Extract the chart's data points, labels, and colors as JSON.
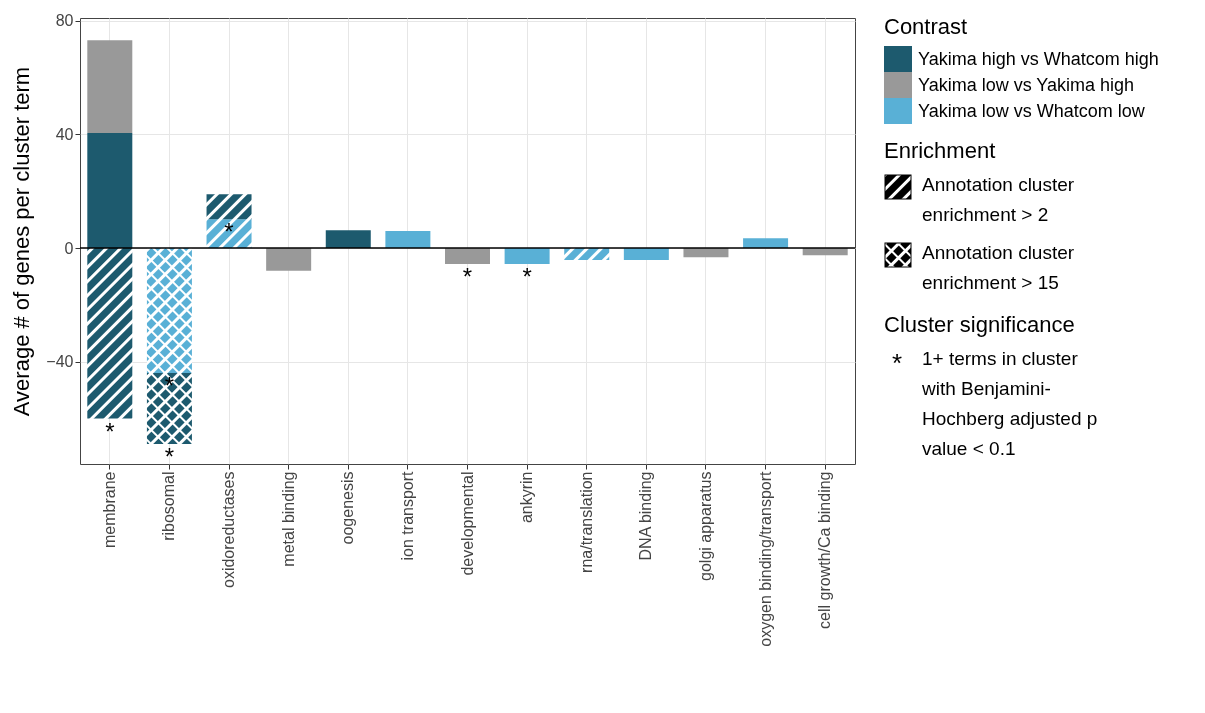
{
  "chart_data": {
    "type": "bar",
    "stacked": true,
    "ylabel": "Average # of genes per cluster term",
    "legend_title": "Contrast",
    "legend": "right",
    "categories": [
      "membrane",
      "ribosomal",
      "oxidoreductases",
      "metal binding",
      "oogenesis",
      "ion transport",
      "developmental",
      "ankyrin",
      "rna/translation",
      "DNA binding",
      "golgi apparatus",
      "oxygen binding/transport",
      "cell growth/Ca binding"
    ],
    "series": [
      {
        "name": "Yakima high vs Whatcom high",
        "color": "#1d5a6e",
        "values": [
          40.5,
          null,
          null,
          null,
          6.3,
          null,
          null,
          null,
          null,
          null,
          null,
          null,
          null
        ]
      },
      {
        "name": "Yakima low vs Yakima high",
        "color": "#999999",
        "values": [
          32.7,
          null,
          null,
          -8,
          null,
          null,
          -5.6,
          null,
          null,
          null,
          -3.2,
          null,
          -2.5
        ]
      },
      {
        "name": "Yakima low vs Whatcom low",
        "color": "#59b0d6",
        "values": [
          null,
          null,
          null,
          null,
          null,
          6,
          null,
          -5.6,
          null,
          -4.2,
          null,
          3.5,
          null
        ]
      },
      {
        "colors": [
          "#1d5a6e",
          null,
          "#59b0d6",
          null,
          null,
          null,
          null,
          null,
          "#59b0d6",
          null,
          null,
          null,
          null
        ],
        "values": [
          -60,
          null,
          10.2,
          null,
          null,
          null,
          null,
          null,
          -4.2,
          null,
          null,
          null,
          null
        ]
      },
      {
        "colors": [
          null,
          null,
          "#1d5a6e",
          null,
          null,
          null,
          null,
          null,
          null,
          null,
          null,
          null,
          null
        ],
        "values": [
          null,
          null,
          8.8,
          null,
          null,
          null,
          null,
          null,
          null,
          null,
          null,
          null,
          null
        ]
      },
      {
        "colors": [
          null,
          "#59b0d6",
          null,
          null,
          null,
          null,
          null,
          null,
          null,
          null,
          null,
          null,
          null
        ],
        "values": [
          null,
          -44,
          null,
          null,
          null,
          null,
          null,
          null,
          null,
          null,
          null,
          null,
          null
        ]
      },
      {
        "colors": [
          null,
          "#1d5a6e",
          null,
          null,
          null,
          null,
          null,
          null,
          null,
          null,
          null,
          null,
          null
        ],
        "values": [
          null,
          -25,
          null,
          null,
          null,
          null,
          null,
          null,
          null,
          null,
          null,
          null,
          null
        ]
      }
    ],
    "ylim": [
      -76,
      81
    ],
    "yticks": [
      -40,
      0,
      40,
      80
    ],
    "grid": true,
    "ref_lines": [
      {
        "axis": "y",
        "value": 0,
        "color": "#000000"
      }
    ],
    "annotations": [
      "Enrichment",
      "Annotation cluster enrichment > 2",
      "Annotation cluster enrichment > 15",
      "Cluster significance",
      "1+ terms in cluster with Benjamini-Hochberg adjusted p value < 0.1",
      {
        "text": "*",
        "x": "membrane",
        "y": -60
      },
      {
        "text": "*",
        "x": "ribosomal",
        "y": -44
      },
      {
        "text": "*",
        "x": "ribosomal",
        "y": -69
      },
      {
        "text": "*",
        "x": "oxidoreductases",
        "y": 10.2
      },
      {
        "text": "*",
        "x": "developmental",
        "y": -5.6
      },
      {
        "text": "*",
        "x": "ankyrin",
        "y": -5.6
      }
    ]
  }
}
